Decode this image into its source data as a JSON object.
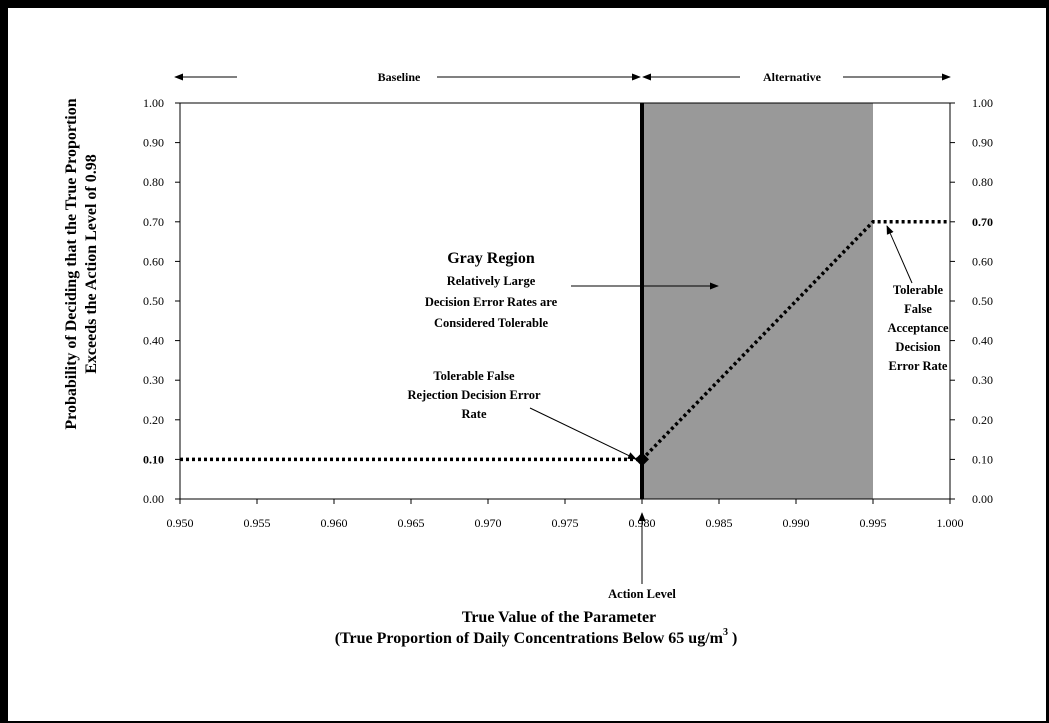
{
  "chart_data": {
    "type": "line",
    "xlabel": "True Value of the Parameter",
    "xlabel_sub": "(True Proportion of Daily Concentrations Below 65 ug/m",
    "xlabel_sup": "3",
    "xlabel_close": ")",
    "ylabel_line1": "Probability of Deciding that the True Proportion",
    "ylabel_line2": "Exceeds the Action Level of 0.98",
    "xlim": [
      0.95,
      1.0
    ],
    "ylim": [
      0.0,
      1.0
    ],
    "x_ticks": [
      "0.950",
      "0.955",
      "0.960",
      "0.965",
      "0.970",
      "0.975",
      "0.980",
      "0.985",
      "0.990",
      "0.995",
      "1.000"
    ],
    "y_ticks": [
      "0.00",
      "0.10",
      "0.20",
      "0.30",
      "0.40",
      "0.50",
      "0.60",
      "0.70",
      "0.80",
      "0.90",
      "1.00"
    ],
    "y_tick_bold": [
      "0.10"
    ],
    "y2_ticks": [
      "0.00",
      "0.10",
      "0.20",
      "0.30",
      "0.40",
      "0.50",
      "0.60",
      "0.70",
      "0.80",
      "0.90",
      "1.00"
    ],
    "y2_tick_bold": [
      "0.70"
    ],
    "series": [
      {
        "x": [
          0.95,
          0.98,
          0.995,
          1.0
        ],
        "y": [
          0.1,
          0.1,
          0.7,
          0.7
        ]
      }
    ],
    "action_level": 0.98,
    "gray_region": [
      0.98,
      0.995
    ],
    "gray_region_color": "#999999",
    "marker_point": [
      0.98,
      0.1
    ],
    "baseline_label": "Baseline",
    "alternative_label": "Alternative",
    "action_level_label": "Action Level",
    "gray_region_title": "Gray Region",
    "gray_region_text": [
      "Relatively Large",
      "Decision Error Rates are",
      "Considered Tolerable"
    ],
    "false_rejection_text": [
      "Tolerable False",
      "Rejection Decision Error",
      "Rate"
    ],
    "false_acceptance_text": [
      "Tolerable",
      "False",
      "Acceptance",
      "Decision",
      "Error Rate"
    ],
    "grid": false,
    "legend": "none"
  }
}
